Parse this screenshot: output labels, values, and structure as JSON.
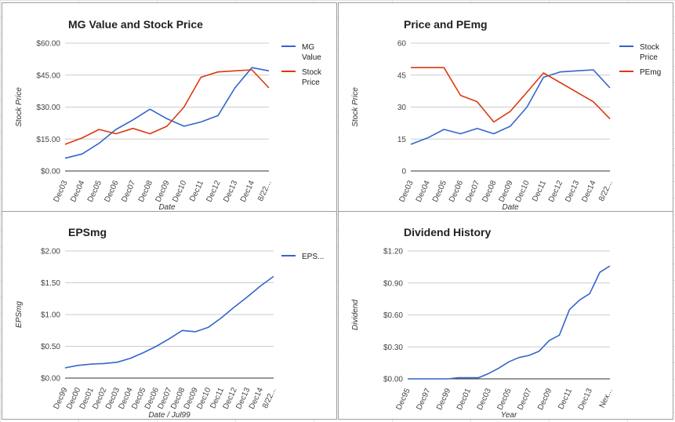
{
  "chart_data": [
    {
      "type": "line",
      "title": "MG Value and Stock Price",
      "xlabel": "Date",
      "ylabel": "Stock Price",
      "categories": [
        "Dec03",
        "Dec04",
        "Dec05",
        "Dec06",
        "Dec07",
        "Dec08",
        "Dec09",
        "Dec10",
        "Dec11",
        "Dec12",
        "Dec13",
        "Dec14",
        "8/22..."
      ],
      "yticks": [
        "$0.00",
        "$15.00",
        "$30.00",
        "$45.00",
        "$60.00"
      ],
      "ylim": [
        0,
        60
      ],
      "grid": true,
      "legend_position": "right",
      "series": [
        {
          "name": "MG Value",
          "legend_lines": [
            "MG",
            "Value"
          ],
          "color": "#3366cc",
          "values": [
            6,
            8,
            13,
            19.5,
            24,
            29,
            24.5,
            21,
            23,
            26,
            39,
            48.5,
            47
          ]
        },
        {
          "name": "Stock Price",
          "legend_lines": [
            "Stock",
            "Price"
          ],
          "color": "#dc3912",
          "values": [
            12.5,
            15.5,
            19.5,
            17.5,
            20,
            17.5,
            21,
            30,
            44,
            46.5,
            47,
            47.5,
            39
          ]
        }
      ]
    },
    {
      "type": "line",
      "title": "Price and PEmg",
      "xlabel": "Date",
      "ylabel": "Stock Price",
      "categories": [
        "Dec03",
        "Dec04",
        "Dec05",
        "Dec06",
        "Dec07",
        "Dec08",
        "Dec09",
        "Dec10",
        "Dec11",
        "Dec12",
        "Dec13",
        "Dec14",
        "8/22..."
      ],
      "yticks": [
        "0",
        "15",
        "30",
        "45",
        "60"
      ],
      "ylim": [
        0,
        60
      ],
      "grid": true,
      "legend_position": "right",
      "series": [
        {
          "name": "Stock Price",
          "legend_lines": [
            "Stock",
            "Price"
          ],
          "color": "#3366cc",
          "values": [
            12.5,
            15.5,
            19.5,
            17.5,
            20,
            17.5,
            21,
            30,
            44,
            46.5,
            47,
            47.5,
            39
          ]
        },
        {
          "name": "PEmg",
          "legend_lines": [
            "PEmg"
          ],
          "color": "#dc3912",
          "values": [
            48.5,
            48.5,
            48.5,
            35.5,
            32.5,
            23,
            28,
            37,
            46,
            null,
            null,
            32.5,
            24.5
          ]
        }
      ]
    },
    {
      "type": "line",
      "title": "EPSmg",
      "xlabel": "Date / Jul99",
      "ylabel": "EPSmg",
      "categories": [
        "Dec99",
        "Dec00",
        "Dec01",
        "Dec02",
        "Dec03",
        "Dec04",
        "Dec05",
        "Dec06",
        "Dec07",
        "Dec08",
        "Dec09",
        "Dec10",
        "Dec11",
        "Dec12",
        "Dec13",
        "Dec14",
        "8/22..."
      ],
      "yticks": [
        "$0.00",
        "$0.50",
        "$1.00",
        "$1.50",
        "$2.00"
      ],
      "ylim": [
        0,
        2
      ],
      "grid": true,
      "legend_position": "right",
      "series": [
        {
          "name": "EPS...",
          "legend_lines": [
            "EPS..."
          ],
          "color": "#3366cc",
          "values": [
            0.16,
            0.2,
            0.22,
            0.23,
            0.25,
            0.31,
            0.4,
            0.5,
            0.62,
            0.75,
            0.73,
            0.8,
            0.95,
            1.12,
            1.28,
            1.45,
            1.6
          ]
        }
      ]
    },
    {
      "type": "line",
      "title": "Dividend History",
      "xlabel": "Year",
      "ylabel": "Dividend",
      "categories": [
        "Dec95",
        "",
        "Dec97",
        "",
        "Dec99",
        "",
        "Dec01",
        "",
        "Dec03",
        "",
        "Dec05",
        "",
        "Dec07",
        "",
        "Dec09",
        "",
        "Dec11",
        "",
        "Dec13",
        "",
        "Nex..."
      ],
      "yticks": [
        "$0.00",
        "$0.30",
        "$0.60",
        "$0.90",
        "$1.20"
      ],
      "ylim": [
        0,
        1.2
      ],
      "grid": true,
      "legend_position": "none",
      "series": [
        {
          "name": "",
          "legend_lines": [],
          "color": "#3366cc",
          "values": [
            0,
            0,
            0,
            0,
            0,
            0.01,
            0.01,
            0.01,
            0.05,
            0.1,
            0.16,
            0.2,
            0.22,
            0.26,
            0.36,
            0.41,
            0.65,
            0.74,
            0.8,
            1.0,
            1.06
          ]
        }
      ]
    }
  ]
}
